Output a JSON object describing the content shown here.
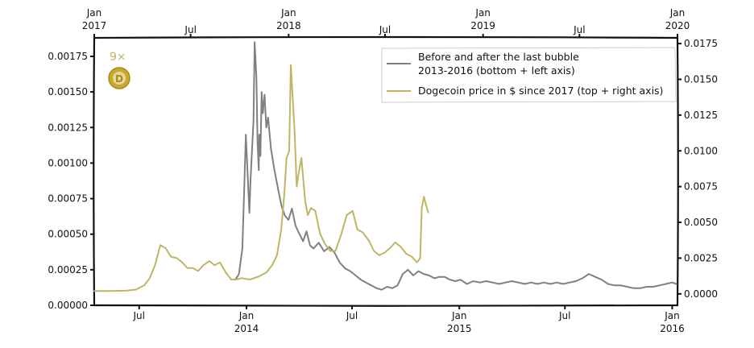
{
  "chart_data": {
    "type": "line",
    "colors": {
      "gray": "#808080",
      "gold": "#bfb565",
      "coin": "#c8a930",
      "coin_face": "#e7d89a"
    },
    "badge_text": "9×",
    "legend": {
      "placement": "top-right",
      "gray_line1": "Before and after the last bubble",
      "gray_line2": "2013-2016 (bottom + left axis)",
      "gold_label": "Dogecoin price in $ since 2017 (top + right axis)"
    },
    "bottom_axis": {
      "min": "2013-04-15",
      "max": "2016-01-10",
      "ticks": [
        {
          "date": "2013-07-01",
          "l1": "Jul",
          "l2": ""
        },
        {
          "date": "2014-01-01",
          "l1": "Jan",
          "l2": "2014"
        },
        {
          "date": "2014-07-01",
          "l1": "Jul",
          "l2": ""
        },
        {
          "date": "2015-01-01",
          "l1": "Jan",
          "l2": "2015"
        },
        {
          "date": "2015-07-01",
          "l1": "Jul",
          "l2": ""
        },
        {
          "date": "2016-01-01",
          "l1": "Jan",
          "l2": "2016"
        }
      ]
    },
    "top_axis": {
      "min": "2017-01-01",
      "max": "2020-01-01",
      "ticks": [
        {
          "date": "2017-01-01",
          "l1": "Jan",
          "l2": "2017"
        },
        {
          "date": "2017-07-01",
          "l1": "Jul",
          "l2": ""
        },
        {
          "date": "2018-01-01",
          "l1": "Jan",
          "l2": "2018"
        },
        {
          "date": "2018-07-01",
          "l1": "Jul",
          "l2": ""
        },
        {
          "date": "2019-01-01",
          "l1": "Jan",
          "l2": "2019"
        },
        {
          "date": "2019-07-01",
          "l1": "Jul",
          "l2": ""
        },
        {
          "date": "2020-01-01",
          "l1": "Jan",
          "l2": "2020"
        }
      ]
    },
    "left_axis": {
      "ylim": [
        0,
        0.00188
      ],
      "ticks": [
        "0.00000",
        "0.00025",
        "0.00050",
        "0.00075",
        "0.00100",
        "0.00125",
        "0.00150",
        "0.00175"
      ]
    },
    "right_axis": {
      "ylim": [
        -0.0008,
        0.0179
      ],
      "ticks": [
        "0.0000",
        "0.0025",
        "0.0050",
        "0.0075",
        "0.0100",
        "0.0125",
        "0.0150",
        "0.0175"
      ]
    },
    "series": [
      {
        "key": "gray",
        "axes": "bottom-left",
        "x": [
          "2013-12-13",
          "2013-12-19",
          "2013-12-25",
          "2013-12-31",
          "2014-01-06",
          "2014-01-08",
          "2014-01-10",
          "2014-01-13",
          "2014-01-15",
          "2014-01-18",
          "2014-01-20",
          "2014-01-22",
          "2014-01-23",
          "2014-01-25",
          "2014-01-27",
          "2014-01-29",
          "2014-02-01",
          "2014-02-04",
          "2014-02-07",
          "2014-02-12",
          "2014-02-18",
          "2014-02-24",
          "2014-03-02",
          "2014-03-08",
          "2014-03-14",
          "2014-03-20",
          "2014-03-26",
          "2014-04-02",
          "2014-04-08",
          "2014-04-14",
          "2014-04-20",
          "2014-04-26",
          "2014-05-05",
          "2014-05-14",
          "2014-05-23",
          "2014-06-01",
          "2014-06-10",
          "2014-06-19",
          "2014-06-28",
          "2014-07-07",
          "2014-07-16",
          "2014-07-25",
          "2014-08-03",
          "2014-08-12",
          "2014-08-21",
          "2014-08-30",
          "2014-09-08",
          "2014-09-17",
          "2014-09-26",
          "2014-10-05",
          "2014-10-14",
          "2014-10-23",
          "2014-11-01",
          "2014-11-10",
          "2014-11-19",
          "2014-11-28",
          "2014-12-07",
          "2014-12-16",
          "2014-12-25",
          "2015-01-03",
          "2015-01-14",
          "2015-01-25",
          "2015-02-05",
          "2015-02-16",
          "2015-02-27",
          "2015-03-10",
          "2015-03-21",
          "2015-04-01",
          "2015-04-12",
          "2015-04-23",
          "2015-05-04",
          "2015-05-15",
          "2015-05-26",
          "2015-06-06",
          "2015-06-17",
          "2015-06-28",
          "2015-07-09",
          "2015-07-20",
          "2015-07-31",
          "2015-08-11",
          "2015-08-22",
          "2015-09-02",
          "2015-09-13",
          "2015-09-24",
          "2015-10-05",
          "2015-10-16",
          "2015-10-27",
          "2015-11-07",
          "2015-11-18",
          "2015-11-29",
          "2015-12-10",
          "2015-12-21",
          "2016-01-01",
          "2016-01-08"
        ],
        "y": [
          0.00018,
          0.00022,
          0.0004,
          0.0012,
          0.00065,
          0.00088,
          0.00105,
          0.0013,
          0.00185,
          0.0016,
          0.00115,
          0.00095,
          0.0012,
          0.00105,
          0.0015,
          0.00135,
          0.00148,
          0.00125,
          0.00132,
          0.0011,
          0.00095,
          0.00082,
          0.0007,
          0.00063,
          0.0006,
          0.00068,
          0.00056,
          0.0005,
          0.00045,
          0.00052,
          0.00042,
          0.0004,
          0.00044,
          0.00038,
          0.00041,
          0.00037,
          0.0003,
          0.00026,
          0.00024,
          0.00021,
          0.00018,
          0.00016,
          0.00014,
          0.00012,
          0.00011,
          0.00013,
          0.00012,
          0.00014,
          0.00022,
          0.00025,
          0.00021,
          0.00024,
          0.00022,
          0.00021,
          0.00019,
          0.0002,
          0.0002,
          0.00018,
          0.00017,
          0.00018,
          0.00015,
          0.00017,
          0.00016,
          0.00017,
          0.00016,
          0.00015,
          0.00016,
          0.00017,
          0.00016,
          0.00015,
          0.00016,
          0.00015,
          0.00016,
          0.00015,
          0.00016,
          0.00015,
          0.00016,
          0.00017,
          0.00019,
          0.00022,
          0.0002,
          0.00018,
          0.00015,
          0.00014,
          0.00014,
          0.00013,
          0.00012,
          0.00012,
          0.00013,
          0.00013,
          0.00014,
          0.00015,
          0.00016,
          0.00015
        ]
      },
      {
        "key": "gold",
        "axes": "top-right",
        "x": [
          "2017-01-01",
          "2017-02-01",
          "2017-03-01",
          "2017-03-20",
          "2017-04-05",
          "2017-04-15",
          "2017-04-25",
          "2017-05-05",
          "2017-05-15",
          "2017-05-25",
          "2017-06-05",
          "2017-06-15",
          "2017-06-25",
          "2017-07-05",
          "2017-07-15",
          "2017-07-25",
          "2017-08-05",
          "2017-08-15",
          "2017-08-25",
          "2017-09-05",
          "2017-09-15",
          "2017-09-25",
          "2017-10-05",
          "2017-10-20",
          "2017-11-05",
          "2017-11-20",
          "2017-12-01",
          "2017-12-10",
          "2017-12-18",
          "2017-12-24",
          "2017-12-28",
          "2018-01-02",
          "2018-01-05",
          "2018-01-08",
          "2018-01-12",
          "2018-01-16",
          "2018-01-20",
          "2018-01-25",
          "2018-02-01",
          "2018-02-06",
          "2018-02-12",
          "2018-02-20",
          "2018-03-01",
          "2018-03-10",
          "2018-03-20",
          "2018-03-30",
          "2018-04-10",
          "2018-04-20",
          "2018-05-01",
          "2018-05-10",
          "2018-05-20",
          "2018-06-01",
          "2018-06-10",
          "2018-06-20",
          "2018-07-01",
          "2018-07-10",
          "2018-07-20",
          "2018-07-30",
          "2018-08-10",
          "2018-08-20",
          "2018-08-30",
          "2018-09-05",
          "2018-09-08",
          "2018-09-12",
          "2018-09-16",
          "2018-09-20"
        ],
        "y": [
          0.0002,
          0.0002,
          0.00022,
          0.0003,
          0.0006,
          0.0011,
          0.002,
          0.0034,
          0.0032,
          0.0026,
          0.0025,
          0.0022,
          0.0018,
          0.0018,
          0.0016,
          0.002,
          0.0023,
          0.002,
          0.0022,
          0.0015,
          0.001,
          0.001,
          0.0011,
          0.001,
          0.0012,
          0.0015,
          0.002,
          0.0027,
          0.0045,
          0.007,
          0.0095,
          0.01,
          0.016,
          0.014,
          0.0115,
          0.0075,
          0.0085,
          0.0095,
          0.0065,
          0.0055,
          0.006,
          0.0058,
          0.0042,
          0.0035,
          0.003,
          0.003,
          0.0042,
          0.0055,
          0.0058,
          0.0045,
          0.0043,
          0.0037,
          0.003,
          0.0027,
          0.0029,
          0.0032,
          0.0036,
          0.0033,
          0.0028,
          0.0026,
          0.0022,
          0.0025,
          0.006,
          0.0068,
          0.0062,
          0.0057
        ]
      }
    ]
  }
}
